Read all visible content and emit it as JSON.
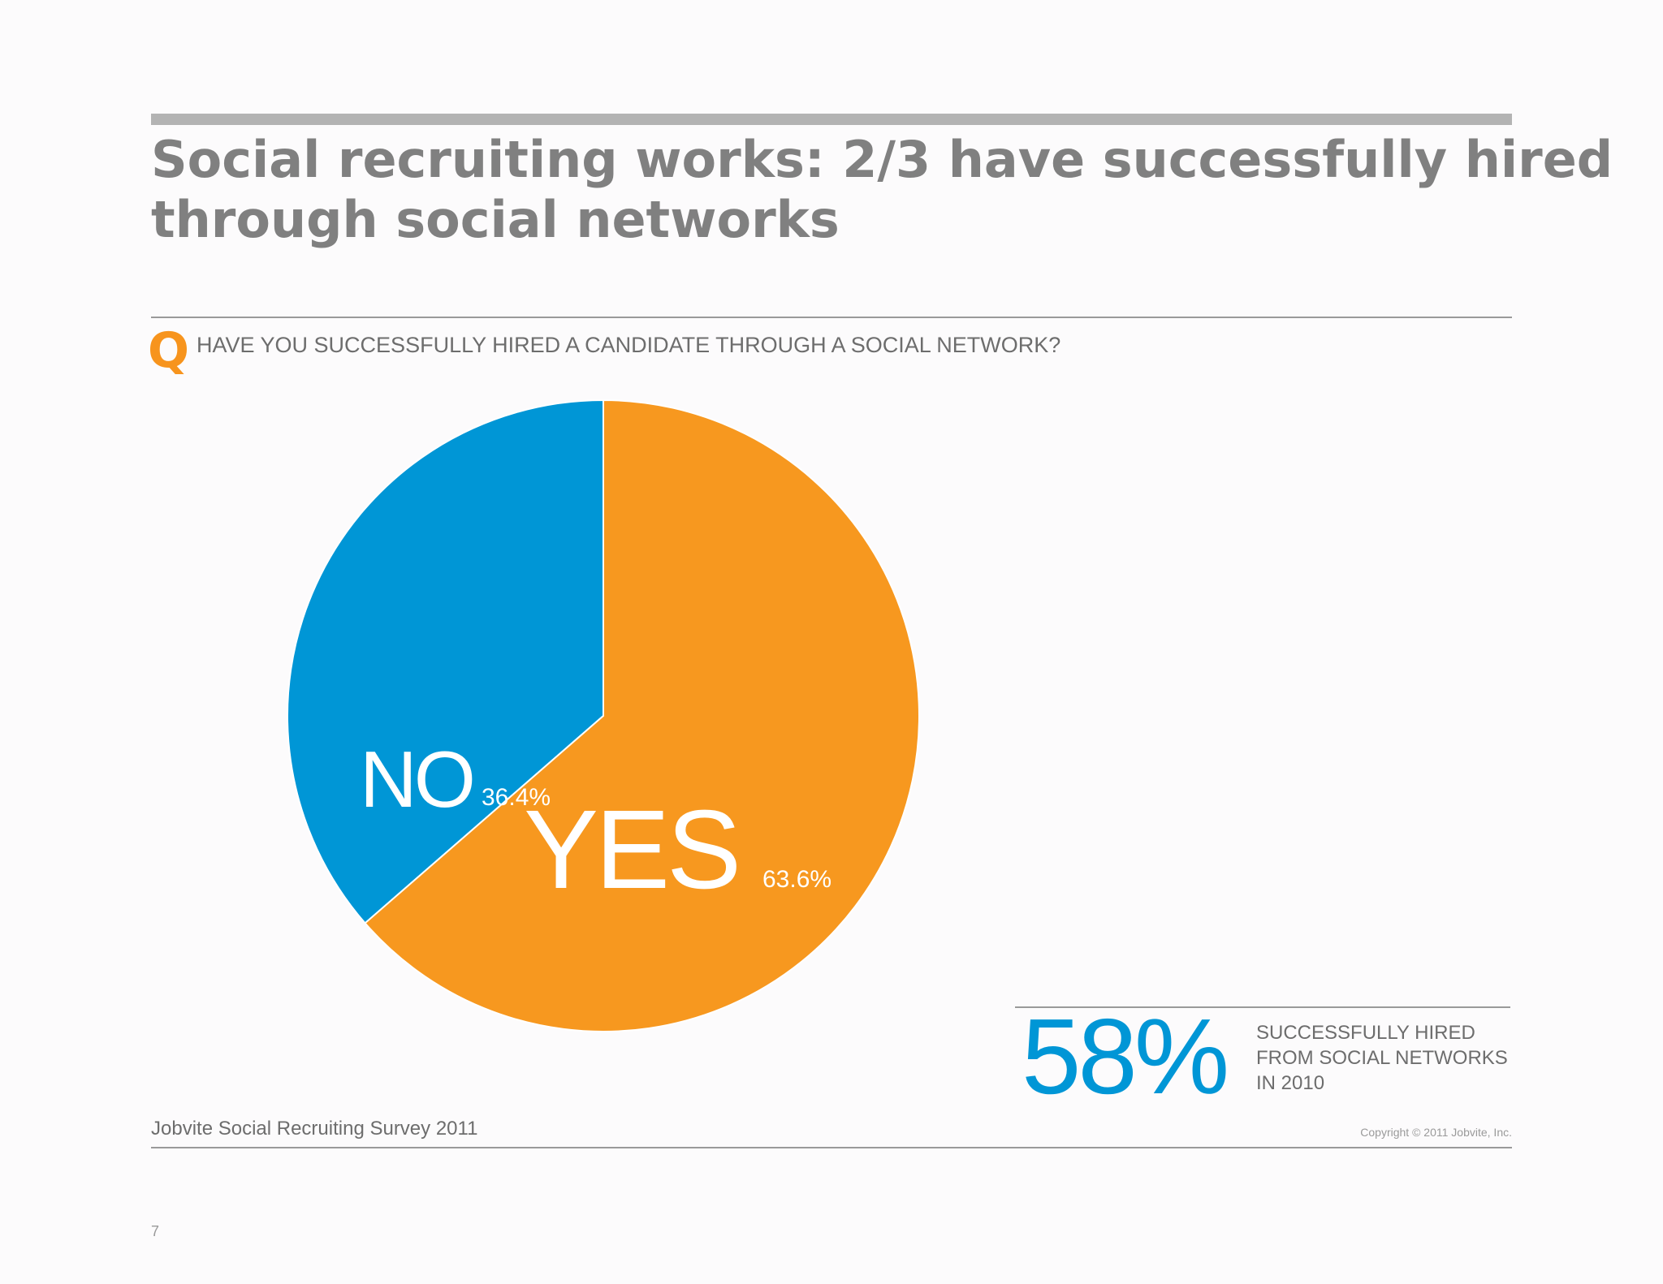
{
  "slide": {
    "title_line1": "Social recruiting works: 2/3 have successfully hired",
    "title_line2": "through social networks",
    "question_mark": "Q",
    "question": "HAVE YOU SUCCESSFULLY HIRED A CANDIDATE THROUGH A SOCIAL NETWORK?",
    "stat_value": "58%",
    "stat_note_lines": [
      "SUCCESSFULLY HIRED",
      "FROM SOCIAL NETWORKS",
      "IN 2010"
    ],
    "source": "Jobvite Social Recruiting Survey 2011",
    "copyright": "Copyright © 2011 Jobvite, Inc.",
    "page_number": "7"
  },
  "chart_data": {
    "type": "pie",
    "title": "",
    "slices": [
      {
        "name": "NO",
        "value": 36.4,
        "label": "36.4%",
        "color": "#0096d6"
      },
      {
        "name": "YES",
        "value": 63.6,
        "label": "63.6%",
        "color": "#f7981f"
      }
    ]
  },
  "colors": {
    "accent_orange": "#f7941d",
    "accent_blue": "#0096d6",
    "text_gray": "#808080"
  }
}
